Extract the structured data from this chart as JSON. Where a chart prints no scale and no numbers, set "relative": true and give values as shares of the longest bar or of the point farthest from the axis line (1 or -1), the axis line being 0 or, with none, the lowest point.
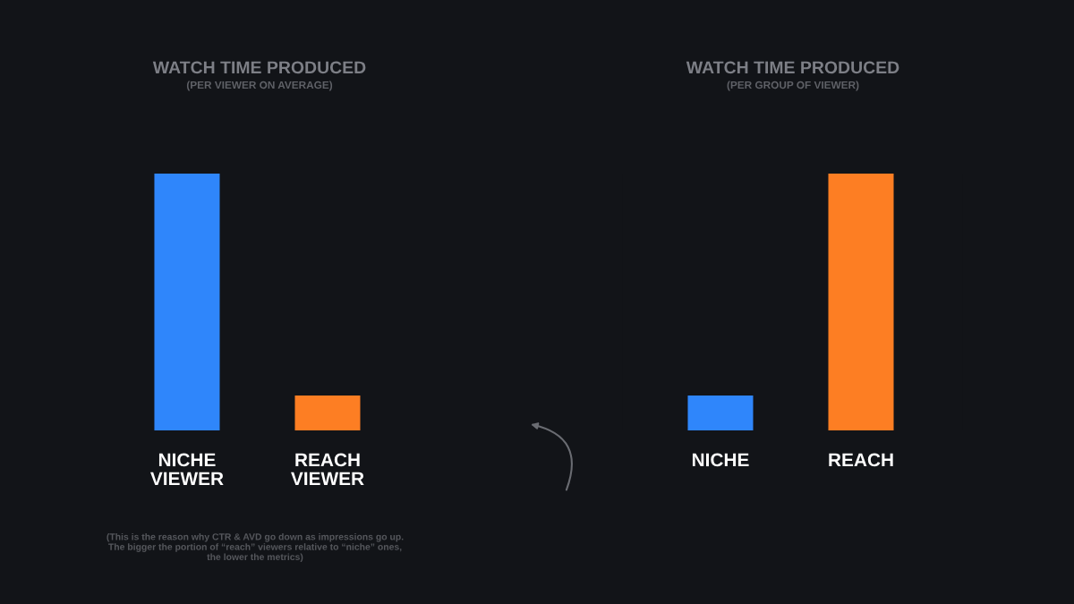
{
  "chart_data": [
    {
      "type": "bar",
      "title": "WATCH TIME PRODUCED",
      "subtitle": "(PER VIEWER ON AVERAGE)",
      "categories": [
        "NICHE\nVIEWER",
        "REACH\nVIEWER"
      ],
      "values": [
        1,
        0.136
      ],
      "colors": [
        "#2f86fb",
        "#fd7e23"
      ],
      "relative": true,
      "grid": false,
      "legend": false,
      "annotations": [
        "(This is the reason why CTR & AVD go down as impressions go up.\nThe bigger the portion of “reach” viewers relative to “niche” ones,\nthe lower the metrics)"
      ]
    },
    {
      "type": "bar",
      "title": "WATCH TIME PRODUCED",
      "subtitle": "(PER GROUP OF VIEWER)",
      "categories": [
        "NICHE",
        "REACH"
      ],
      "values": [
        0.136,
        1
      ],
      "colors": [
        "#2f86fb",
        "#fd7e23"
      ],
      "relative": true,
      "grid": false,
      "legend": false
    }
  ]
}
